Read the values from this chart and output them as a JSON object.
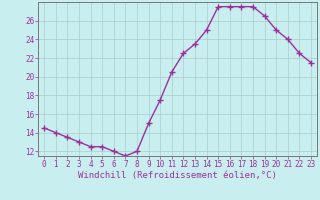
{
  "x": [
    0,
    1,
    2,
    3,
    4,
    5,
    6,
    7,
    8,
    9,
    10,
    11,
    12,
    13,
    14,
    15,
    16,
    17,
    18,
    19,
    20,
    21,
    22,
    23
  ],
  "y": [
    14.5,
    14.0,
    13.5,
    13.0,
    12.5,
    12.5,
    12.0,
    11.5,
    12.0,
    15.0,
    17.5,
    20.5,
    22.5,
    23.5,
    25.0,
    27.5,
    27.5,
    27.5,
    27.5,
    26.5,
    25.0,
    24.0,
    22.5,
    21.5
  ],
  "xlabel": "Windchill (Refroidissement éolien,°C)",
  "line_color": "#993399",
  "marker": "+",
  "markersize": 4,
  "linewidth": 1.0,
  "background_color": "#c8eef0",
  "grid_color": "#aacccc",
  "xlim": [
    -0.5,
    23.5
  ],
  "ylim": [
    11.5,
    28.0
  ],
  "yticks": [
    12,
    14,
    16,
    18,
    20,
    22,
    24,
    26
  ],
  "xticks": [
    0,
    1,
    2,
    3,
    4,
    5,
    6,
    7,
    8,
    9,
    10,
    11,
    12,
    13,
    14,
    15,
    16,
    17,
    18,
    19,
    20,
    21,
    22,
    23
  ],
  "tick_fontsize": 5.5,
  "xlabel_fontsize": 6.5
}
